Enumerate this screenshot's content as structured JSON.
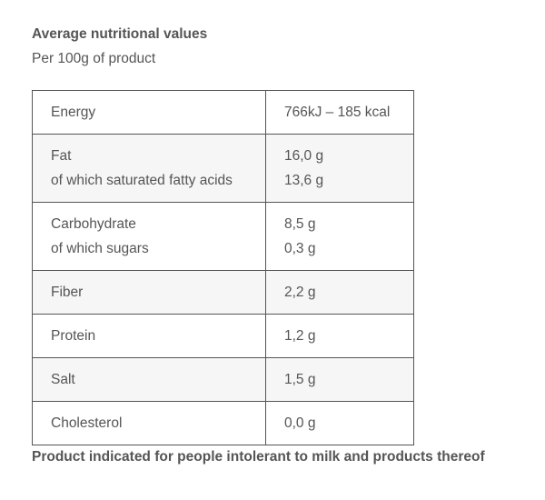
{
  "header": {
    "title": "Average nutritional values",
    "subtitle": "Per 100g of product"
  },
  "table": {
    "rows": [
      {
        "label_lines": [
          "Energy"
        ],
        "value_lines": [
          "766kJ – 185 kcal"
        ]
      },
      {
        "label_lines": [
          "Fat",
          "of which saturated fatty acids"
        ],
        "value_lines": [
          "16,0 g",
          "13,6 g"
        ]
      },
      {
        "label_lines": [
          "Carbohydrate",
          "of which sugars"
        ],
        "value_lines": [
          "8,5 g",
          "0,3 g"
        ]
      },
      {
        "label_lines": [
          "Fiber"
        ],
        "value_lines": [
          "2,2 g"
        ]
      },
      {
        "label_lines": [
          "Protein"
        ],
        "value_lines": [
          "1,2 g"
        ]
      },
      {
        "label_lines": [
          "Salt"
        ],
        "value_lines": [
          "1,5 g"
        ]
      },
      {
        "label_lines": [
          "Cholesterol"
        ],
        "value_lines": [
          "0,0 g"
        ]
      }
    ]
  },
  "footer": {
    "note": "Product indicated for people intolerant to milk and products thereof"
  },
  "colors": {
    "text": "#555555",
    "border": "#555555",
    "shaded_row": "#f6f6f6"
  }
}
